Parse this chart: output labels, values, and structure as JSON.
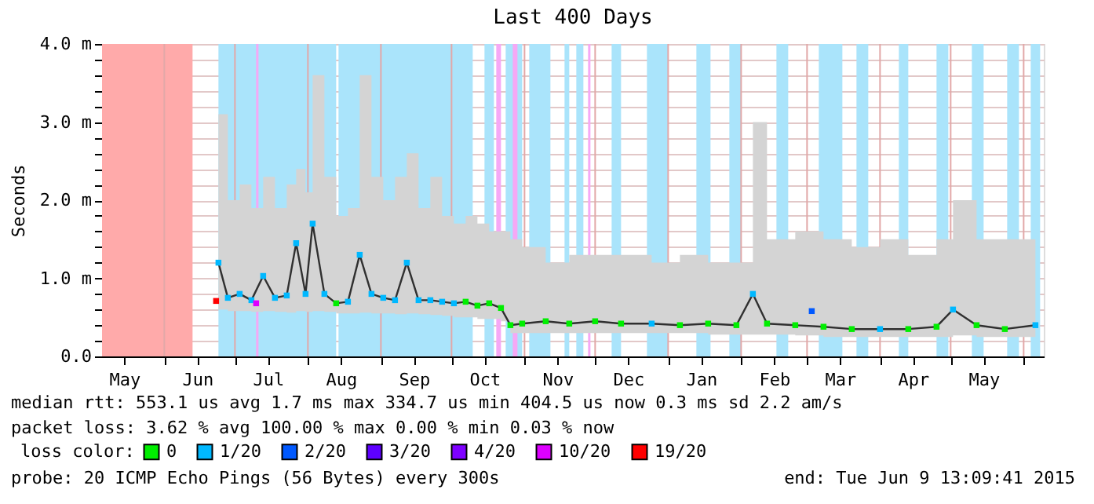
{
  "chart_data": {
    "type": "line",
    "title": "Last 400 Days",
    "ylabel": "Seconds",
    "legend_title": "loss color:",
    "legend": "bottom",
    "grid": true,
    "marker": "square",
    "xlim": [
      "2014-05-05T13:09",
      "2015-06-09T13:09"
    ],
    "xticks": [
      {
        "value": "2014-05-15",
        "label": "May"
      },
      {
        "value": "2014-06-01",
        "label": null
      },
      {
        "value": "2014-06-15",
        "label": "Jun"
      },
      {
        "value": "2014-07-01",
        "label": null
      },
      {
        "value": "2014-07-15",
        "label": "Jul"
      },
      {
        "value": "2014-08-01",
        "label": null
      },
      {
        "value": "2014-08-15",
        "label": "Aug"
      },
      {
        "value": "2014-09-01",
        "label": null
      },
      {
        "value": "2014-09-15",
        "label": "Sep"
      },
      {
        "value": "2014-10-01",
        "label": null
      },
      {
        "value": "2014-10-15",
        "label": "Oct"
      },
      {
        "value": "2014-11-01",
        "label": null
      },
      {
        "value": "2014-11-15",
        "label": "Nov"
      },
      {
        "value": "2014-12-01",
        "label": null
      },
      {
        "value": "2014-12-15",
        "label": "Dec"
      },
      {
        "value": "2015-01-01",
        "label": null
      },
      {
        "value": "2015-01-15",
        "label": "Jan"
      },
      {
        "value": "2015-02-01",
        "label": null
      },
      {
        "value": "2015-02-15",
        "label": "Feb"
      },
      {
        "value": "2015-03-01",
        "label": null
      },
      {
        "value": "2015-03-15",
        "label": "Mar"
      },
      {
        "value": "2015-04-01",
        "label": null
      },
      {
        "value": "2015-04-15",
        "label": "Apr"
      },
      {
        "value": "2015-05-01",
        "label": null
      },
      {
        "value": "2015-05-15",
        "label": "May"
      },
      {
        "value": "2015-06-01",
        "label": null
      }
    ],
    "ylim": [
      0,
      4
    ],
    "yticks": [
      {
        "value": 0,
        "label": "0.0"
      },
      {
        "value": 0.2,
        "label": null
      },
      {
        "value": 0.4,
        "label": null
      },
      {
        "value": 0.6,
        "label": null
      },
      {
        "value": 0.8,
        "label": null
      },
      {
        "value": 1,
        "label": "1.0 m"
      },
      {
        "value": 1.2,
        "label": null
      },
      {
        "value": 1.4,
        "label": null
      },
      {
        "value": 1.6,
        "label": null
      },
      {
        "value": 1.8,
        "label": null
      },
      {
        "value": 2,
        "label": "2.0 m"
      },
      {
        "value": 2.2,
        "label": null
      },
      {
        "value": 2.4,
        "label": null
      },
      {
        "value": 2.6,
        "label": null
      },
      {
        "value": 2.8,
        "label": null
      },
      {
        "value": 3,
        "label": "3.0 m"
      },
      {
        "value": 3.2,
        "label": null
      },
      {
        "value": 3.4,
        "label": null
      },
      {
        "value": 3.6,
        "label": null
      },
      {
        "value": 3.8,
        "label": null
      },
      {
        "value": 4,
        "label": "4.0 m"
      }
    ],
    "bands": [
      {
        "axis": "x",
        "from": "2014-05-05T13:09",
        "to": "2014-06-13",
        "color": "#ffaaaa"
      },
      {
        "axis": "x",
        "from": "2014-06-24",
        "to": "2014-08-13",
        "color": "#aae4fb"
      },
      {
        "axis": "x",
        "from": "2014-08-14",
        "to": "2014-10-10",
        "color": "#aae4fb"
      },
      {
        "axis": "x",
        "from": "2014-10-15",
        "to": "2014-10-19",
        "color": "#aae4fb"
      },
      {
        "axis": "x",
        "from": "2014-10-24",
        "to": "2014-10-31",
        "color": "#aae4fb"
      },
      {
        "axis": "x",
        "from": "2014-11-03",
        "to": "2014-11-12",
        "color": "#aae4fb"
      },
      {
        "axis": "x",
        "from": "2014-11-18",
        "to": "2014-11-20",
        "color": "#aae4fb"
      },
      {
        "axis": "x",
        "from": "2014-11-23",
        "to": "2014-11-26",
        "color": "#aae4fb"
      },
      {
        "axis": "x",
        "from": "2014-12-08",
        "to": "2014-12-12",
        "color": "#aae4fb"
      },
      {
        "axis": "x",
        "from": "2014-12-23",
        "to": "2015-01-01",
        "color": "#aae4fb"
      },
      {
        "axis": "x",
        "from": "2015-01-13",
        "to": "2015-01-19",
        "color": "#aae4fb"
      },
      {
        "axis": "x",
        "from": "2015-01-27",
        "to": "2015-02-01",
        "color": "#aae4fb"
      },
      {
        "axis": "x",
        "from": "2015-02-16",
        "to": "2015-02-21",
        "color": "#aae4fb"
      },
      {
        "axis": "x",
        "from": "2015-03-06",
        "to": "2015-03-16",
        "color": "#aae4fb"
      },
      {
        "axis": "x",
        "from": "2015-03-22",
        "to": "2015-03-27",
        "color": "#aae4fb"
      },
      {
        "axis": "x",
        "from": "2015-04-09",
        "to": "2015-04-13",
        "color": "#aae4fb"
      },
      {
        "axis": "x",
        "from": "2015-04-25",
        "to": "2015-04-30",
        "color": "#aae4fb"
      },
      {
        "axis": "x",
        "from": "2015-05-10",
        "to": "2015-05-15",
        "color": "#aae4fb"
      },
      {
        "axis": "x",
        "from": "2015-05-25",
        "to": "2015-05-30",
        "color": "#aae4fb"
      },
      {
        "axis": "x",
        "from": "2015-06-04",
        "to": "2015-06-08",
        "color": "#aae4fb"
      },
      {
        "axis": "x",
        "from": "2014-07-10",
        "to": "2014-07-11",
        "color": "#f5a8f5"
      },
      {
        "axis": "x",
        "from": "2014-10-20",
        "to": "2014-10-22",
        "color": "#f5a8f5"
      },
      {
        "axis": "x",
        "from": "2014-10-27",
        "to": "2014-10-29",
        "color": "#f5a8f5"
      },
      {
        "axis": "x",
        "from": "2014-11-28",
        "to": "2014-11-29",
        "color": "#f5a8f5"
      }
    ],
    "series": [
      {
        "color": "#303030",
        "marker": "none",
        "x": [
          "2014-06-24",
          "2014-06-28",
          "2014-07-03",
          "2014-07-08",
          "2014-07-13",
          "2014-07-18",
          "2014-07-23",
          "2014-07-27",
          "2014-07-31",
          "2014-08-03",
          "2014-08-08",
          "2014-08-13",
          "2014-08-18",
          "2014-08-23",
          "2014-08-28",
          "2014-09-02",
          "2014-09-07",
          "2014-09-12",
          "2014-09-17",
          "2014-09-22",
          "2014-09-27",
          "2014-10-02",
          "2014-10-07",
          "2014-10-12",
          "2014-10-17",
          "2014-10-22",
          "2014-10-26",
          "2014-10-31",
          "2014-11-10",
          "2014-11-20",
          "2014-12-01",
          "2014-12-12",
          "2014-12-25",
          "2015-01-06",
          "2015-01-18",
          "2015-01-30",
          "2015-02-06",
          "2015-02-12",
          "2015-02-24",
          "2015-03-08",
          "2015-03-20",
          "2015-04-01",
          "2015-04-13",
          "2015-04-25",
          "2015-05-02",
          "2015-05-12",
          "2015-05-24",
          "2015-06-06"
        ],
        "values": [
          1.2,
          0.75,
          0.8,
          0.72,
          1.03,
          0.75,
          0.78,
          1.45,
          0.8,
          1.7,
          0.8,
          0.68,
          0.7,
          1.3,
          0.8,
          0.75,
          0.72,
          1.2,
          0.72,
          0.72,
          0.7,
          0.68,
          0.7,
          0.65,
          0.68,
          0.62,
          0.4,
          0.42,
          0.45,
          0.42,
          0.45,
          0.42,
          0.42,
          0.4,
          0.42,
          0.4,
          0.8,
          0.42,
          0.4,
          0.38,
          0.35,
          0.35,
          0.35,
          0.38,
          0.6,
          0.4,
          0.35,
          0.4
        ],
        "lower": [
          0.6,
          0.58,
          0.58,
          0.57,
          0.58,
          0.57,
          0.56,
          0.58,
          0.57,
          0.58,
          0.57,
          0.55,
          0.55,
          0.56,
          0.55,
          0.55,
          0.54,
          0.55,
          0.54,
          0.53,
          0.52,
          0.5,
          0.5,
          0.48,
          0.48,
          0.45,
          0.3,
          0.3,
          0.3,
          0.3,
          0.3,
          0.3,
          0.3,
          0.3,
          0.28,
          0.28,
          0.28,
          0.28,
          0.27,
          0.25,
          0.25,
          0.25,
          0.25,
          0.25,
          0.27,
          0.25,
          0.25,
          0.26
        ],
        "upper": [
          3.1,
          2.0,
          2.2,
          1.9,
          2.3,
          1.9,
          2.2,
          2.4,
          2.1,
          3.6,
          2.3,
          1.8,
          1.9,
          3.6,
          2.3,
          2.0,
          2.3,
          2.6,
          1.9,
          2.3,
          1.8,
          1.7,
          1.8,
          1.7,
          1.6,
          1.6,
          1.5,
          1.4,
          1.2,
          1.3,
          1.3,
          1.3,
          1.2,
          1.3,
          1.2,
          1.2,
          3.0,
          1.5,
          1.6,
          1.5,
          1.4,
          1.5,
          1.3,
          1.5,
          2.0,
          1.5,
          1.5,
          1.6
        ]
      },
      {
        "type": "scatter",
        "name": "0",
        "color": "#00ee00",
        "x": [
          "2014-08-13",
          "2014-10-07",
          "2014-10-12",
          "2014-10-17",
          "2014-10-22",
          "2014-10-26",
          "2014-10-31",
          "2014-11-10",
          "2014-11-20",
          "2014-12-01",
          "2014-12-12",
          "2015-01-06",
          "2015-01-18",
          "2015-01-30",
          "2015-02-12",
          "2015-02-24",
          "2015-03-08",
          "2015-03-20",
          "2015-04-13",
          "2015-04-25",
          "2015-05-12",
          "2015-05-24"
        ],
        "values": [
          0.68,
          0.7,
          0.65,
          0.68,
          0.62,
          0.4,
          0.42,
          0.45,
          0.42,
          0.45,
          0.42,
          0.4,
          0.42,
          0.4,
          0.42,
          0.4,
          0.38,
          0.35,
          0.35,
          0.38,
          0.4,
          0.35
        ]
      },
      {
        "type": "scatter",
        "name": "1/20",
        "color": "#00b8ff",
        "x": [
          "2014-06-24",
          "2014-06-28",
          "2014-07-03",
          "2014-07-08",
          "2014-07-13",
          "2014-07-18",
          "2014-07-23",
          "2014-07-27",
          "2014-07-31",
          "2014-08-03",
          "2014-08-08",
          "2014-08-18",
          "2014-08-23",
          "2014-08-28",
          "2014-09-02",
          "2014-09-07",
          "2014-09-12",
          "2014-09-17",
          "2014-09-22",
          "2014-09-27",
          "2014-10-02",
          "2014-12-25",
          "2015-02-06",
          "2015-04-01",
          "2015-05-02",
          "2015-06-06"
        ],
        "values": [
          1.2,
          0.75,
          0.8,
          0.72,
          1.03,
          0.75,
          0.78,
          1.45,
          0.8,
          1.7,
          0.8,
          0.7,
          1.3,
          0.8,
          0.75,
          0.72,
          1.2,
          0.72,
          0.72,
          0.7,
          0.68,
          0.42,
          0.8,
          0.35,
          0.6,
          0.4
        ]
      },
      {
        "type": "scatter",
        "name": "2/20",
        "color": "#0059ff",
        "x": [
          "2015-03-03"
        ],
        "values": [
          0.58
        ]
      },
      {
        "type": "scatter",
        "name": "3/20",
        "color": "#5e00ff"
      },
      {
        "type": "scatter",
        "name": "4/20",
        "color": "#7e00ff"
      },
      {
        "type": "scatter",
        "name": "10/20",
        "color": "#dd00ff",
        "x": [
          "2014-07-10"
        ],
        "values": [
          0.68
        ]
      },
      {
        "type": "scatter",
        "name": "19/20",
        "color": "#ff0000",
        "x": [
          "2014-06-23"
        ],
        "values": [
          0.71
        ]
      }
    ],
    "annotations": [
      "median rtt:  553.1 us avg  1.7 ms max  334.7 us min  404.5 us now  0.3 ms sd  2.2   am/s",
      "packet loss: 3.62 % avg  100.00 % max  0.00 % min  0.03 % now",
      "probe:       20 ICMP Echo Pings (56 Bytes) every 300s",
      "end: Tue Jun  9 13:09:41 2015"
    ]
  }
}
